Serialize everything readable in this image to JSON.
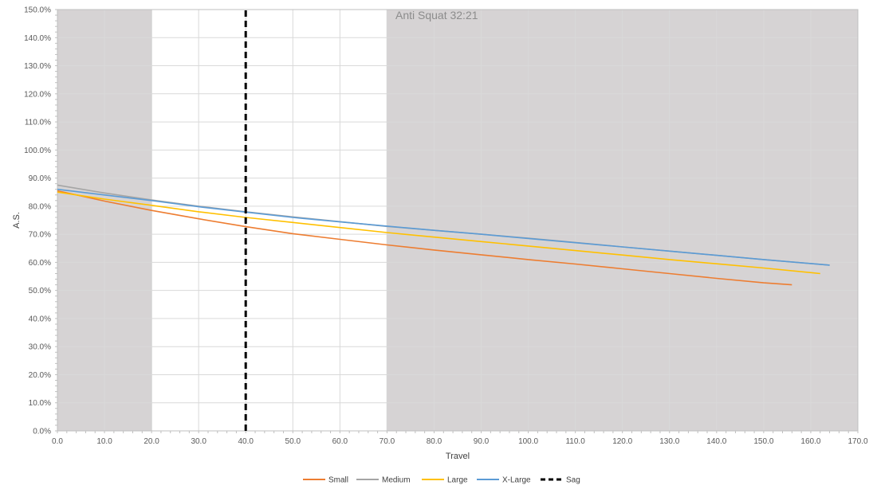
{
  "chart_data": {
    "type": "line",
    "title": "Anti Squat 32:21",
    "xlabel": "Travel",
    "ylabel": "A.S.",
    "xlim": [
      0,
      170
    ],
    "ylim": [
      0,
      150
    ],
    "x_ticks": [
      "0.0",
      "10.0",
      "20.0",
      "30.0",
      "40.0",
      "50.0",
      "60.0",
      "70.0",
      "80.0",
      "90.0",
      "100.0",
      "110.0",
      "120.0",
      "130.0",
      "140.0",
      "150.0",
      "160.0",
      "170.0"
    ],
    "y_ticks": [
      "0.0%",
      "10.0%",
      "20.0%",
      "30.0%",
      "40.0%",
      "50.0%",
      "60.0%",
      "70.0%",
      "80.0%",
      "90.0%",
      "100.0%",
      "110.0%",
      "120.0%",
      "130.0%",
      "140.0%",
      "150.0%"
    ],
    "grid": true,
    "legend_position": "bottom",
    "shaded_regions": [
      {
        "x_start": 0,
        "x_end": 20,
        "color": "#d6d3d4"
      },
      {
        "x_start": 70,
        "x_end": 170,
        "color": "#d6d3d4"
      }
    ],
    "series": [
      {
        "name": "Small",
        "color": "#ed7d31",
        "style": "solid",
        "x": [
          0,
          10,
          20,
          30,
          40,
          50,
          60,
          70,
          80,
          90,
          100,
          110,
          120,
          130,
          140,
          150,
          156
        ],
        "y": [
          85.5,
          81.8,
          78.5,
          75.5,
          72.7,
          70.2,
          68.2,
          66.2,
          64.4,
          62.7,
          61.0,
          59.4,
          57.7,
          56.0,
          54.3,
          52.7,
          52.0
        ]
      },
      {
        "name": "Medium",
        "color": "#a5a5a5",
        "style": "solid",
        "x": [
          0,
          10,
          20,
          30,
          40,
          50,
          60,
          70,
          80,
          90,
          100,
          110,
          120,
          130,
          140,
          150,
          164
        ],
        "y": [
          87.5,
          84.7,
          82.2,
          80.0,
          78.0,
          76.2,
          74.5,
          72.8,
          71.4,
          70.0,
          68.6,
          67.1,
          65.5,
          64.0,
          62.5,
          61.0,
          59.0
        ]
      },
      {
        "name": "Large",
        "color": "#ffc000",
        "style": "solid",
        "x": [
          0,
          10,
          20,
          30,
          40,
          50,
          60,
          70,
          80,
          90,
          100,
          110,
          120,
          130,
          140,
          150,
          162
        ],
        "y": [
          85.0,
          82.5,
          80.3,
          78.0,
          76.0,
          74.2,
          72.4,
          70.6,
          69.0,
          67.4,
          65.8,
          64.2,
          62.6,
          61.0,
          59.5,
          58.0,
          56.0
        ]
      },
      {
        "name": "X-Large",
        "color": "#5b9bd5",
        "style": "solid",
        "x": [
          0,
          10,
          20,
          30,
          40,
          50,
          60,
          70,
          80,
          90,
          100,
          110,
          120,
          130,
          140,
          150,
          164
        ],
        "y": [
          86.0,
          84.0,
          82.0,
          79.8,
          77.9,
          76.0,
          74.4,
          72.9,
          71.4,
          70.0,
          68.5,
          67.0,
          65.5,
          64.0,
          62.5,
          61.0,
          59.0
        ]
      },
      {
        "name": "Sag",
        "color": "#000000",
        "style": "dashed",
        "x": [
          40,
          40
        ],
        "y": [
          0,
          150
        ]
      }
    ]
  }
}
